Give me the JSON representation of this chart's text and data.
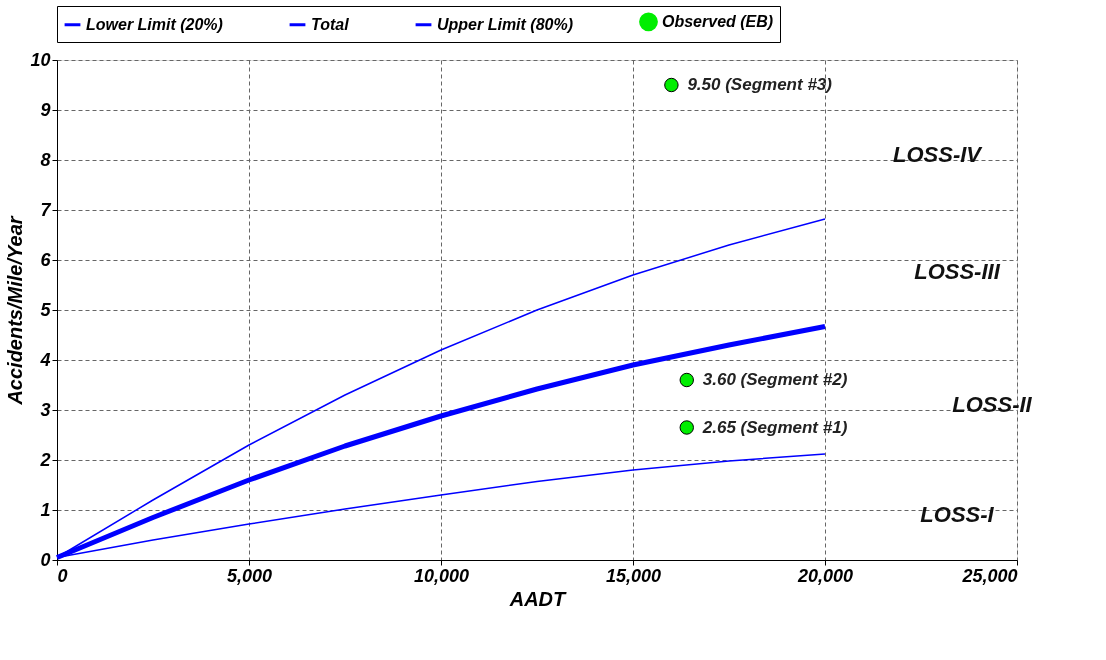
{
  "chart_data": {
    "type": "line",
    "xlabel": "AADT",
    "ylabel": "Accidents/Mile/Year",
    "xlim": [
      0,
      25000
    ],
    "xticks": [
      0,
      {
        "value": 5000,
        "label": "5,000"
      },
      {
        "value": 10000,
        "label": "10,000"
      },
      {
        "value": 15000,
        "label": "15,000"
      },
      {
        "value": 20000,
        "label": "20,000"
      },
      {
        "value": 25000,
        "label": "25,000"
      }
    ],
    "ylim": [
      0,
      10
    ],
    "yticks": [
      0,
      1,
      2,
      3,
      4,
      5,
      6,
      7,
      8,
      9,
      10
    ],
    "grid": true,
    "legend": "top",
    "marker": "none",
    "line_style": "solid",
    "series": [
      {
        "name": "Lower Limit (20%)",
        "color": "#0000ff",
        "x": [
          0,
          2500,
          5000,
          7500,
          10000,
          12500,
          15000,
          17500,
          20000
        ],
        "values": [
          0.05,
          0.4,
          0.72,
          1.02,
          1.3,
          1.57,
          1.8,
          1.98,
          2.12
        ]
      },
      {
        "name": "Total",
        "color": "#0000ff",
        "x": [
          0,
          2500,
          5000,
          7500,
          10000,
          12500,
          15000,
          17500,
          20000
        ],
        "values": [
          0.05,
          0.85,
          1.6,
          2.28,
          2.88,
          3.42,
          3.9,
          4.3,
          4.67
        ]
      },
      {
        "name": "Upper Limit (80%)",
        "color": "#0000ff",
        "x": [
          0,
          2500,
          5000,
          7500,
          10000,
          12500,
          15000,
          17500,
          20000
        ],
        "values": [
          0.05,
          1.2,
          2.3,
          3.3,
          4.2,
          5.0,
          5.7,
          6.3,
          6.82
        ]
      },
      {
        "name": "Observed (EB)",
        "type": "scatter",
        "marker": "circle",
        "color": "#00ee00",
        "x": [
          16000,
          16400,
          16400
        ],
        "values": [
          9.5,
          3.6,
          2.65
        ],
        "value_labels": [
          "9.50 (Segment #3)",
          "3.60 (Segment #2)",
          "2.65 (Segment #1)"
        ]
      }
    ],
    "annotations": [
      "LOSS-IV",
      "LOSS-III",
      "LOSS-II",
      "LOSS-I"
    ]
  }
}
